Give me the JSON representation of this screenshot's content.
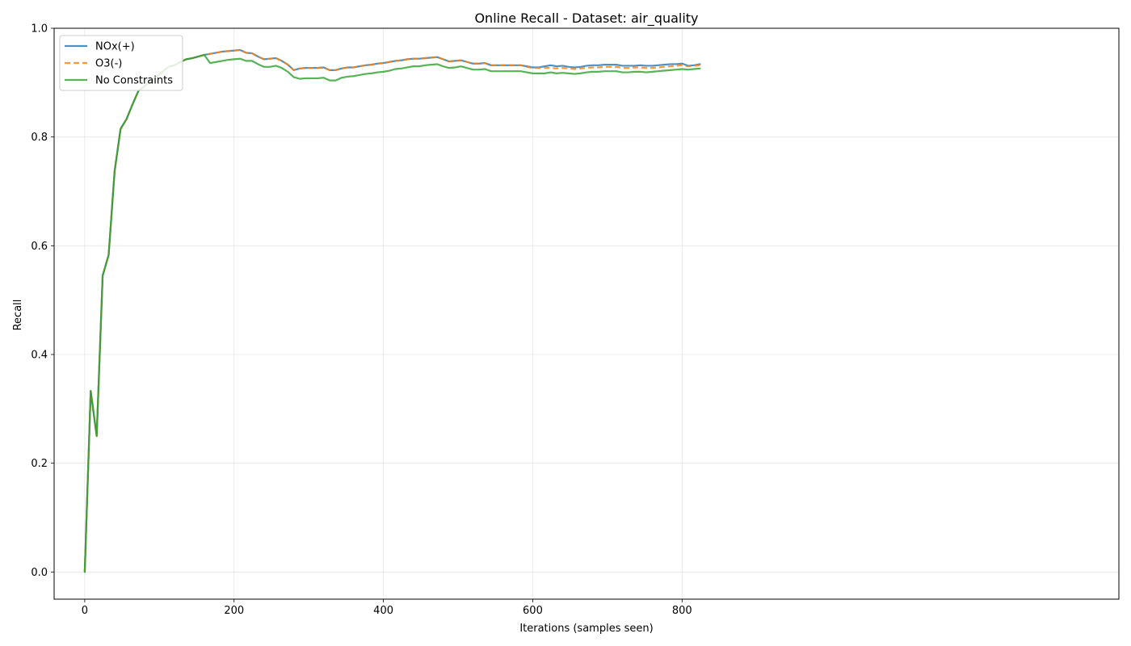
{
  "chart_data": {
    "type": "line",
    "title": "Online Recall - Dataset: air_quality",
    "xlabel": "Iterations (samples seen)",
    "ylabel": "Recall",
    "xlim": [
      -41,
      1385
    ],
    "ylim": [
      -0.05,
      1.0
    ],
    "xticks": [
      0,
      200,
      400,
      600,
      800
    ],
    "yticks": [
      0.0,
      0.2,
      0.4,
      0.6,
      0.8,
      1.0
    ],
    "xtick_labels": [
      "0",
      "200",
      "400",
      "600",
      "800"
    ],
    "ytick_labels": [
      "0.0",
      "0.2",
      "0.4",
      "0.6",
      "0.8",
      "1.0"
    ],
    "grid": true,
    "legend_position": "top-left",
    "x": [
      0,
      8,
      16,
      24,
      32,
      40,
      48,
      56,
      64,
      72,
      80,
      88,
      96,
      104,
      112,
      120,
      128,
      136,
      144,
      152,
      160,
      168,
      176,
      184,
      192,
      200,
      208,
      216,
      224,
      232,
      240,
      248,
      256,
      264,
      272,
      280,
      288,
      296,
      304,
      312,
      320,
      328,
      336,
      344,
      352,
      360,
      368,
      376,
      384,
      392,
      400,
      408,
      416,
      424,
      432,
      440,
      448,
      456,
      464,
      472,
      480,
      488,
      496,
      504,
      512,
      520,
      528,
      536,
      544,
      552,
      560,
      568,
      576,
      584,
      592,
      600,
      608,
      616,
      624,
      632,
      640,
      648,
      656,
      664,
      672,
      680,
      688,
      696,
      704,
      712,
      720,
      728,
      736,
      744,
      752,
      760,
      768,
      776,
      784,
      792,
      800,
      808,
      816,
      824
    ],
    "series": [
      {
        "name": "NOx(+)",
        "color": "#1f77b4",
        "dash": "solid",
        "values": [
          0.0,
          0.333,
          0.25,
          0.545,
          0.583,
          0.737,
          0.815,
          0.833,
          0.86,
          0.885,
          0.893,
          0.903,
          0.91,
          0.92,
          0.929,
          0.932,
          0.938,
          0.943,
          0.945,
          0.948,
          0.951,
          0.953,
          0.955,
          0.957,
          0.958,
          0.959,
          0.96,
          0.955,
          0.954,
          0.948,
          0.943,
          0.944,
          0.945,
          0.94,
          0.933,
          0.923,
          0.926,
          0.927,
          0.927,
          0.927,
          0.928,
          0.923,
          0.923,
          0.926,
          0.928,
          0.928,
          0.93,
          0.932,
          0.933,
          0.935,
          0.936,
          0.938,
          0.94,
          0.941,
          0.943,
          0.944,
          0.944,
          0.945,
          0.946,
          0.947,
          0.943,
          0.939,
          0.94,
          0.941,
          0.938,
          0.935,
          0.935,
          0.936,
          0.932,
          0.932,
          0.932,
          0.932,
          0.932,
          0.932,
          0.93,
          0.928,
          0.928,
          0.93,
          0.932,
          0.93,
          0.931,
          0.929,
          0.928,
          0.929,
          0.931,
          0.932,
          0.932,
          0.933,
          0.933,
          0.933,
          0.931,
          0.931,
          0.931,
          0.932,
          0.931,
          0.931,
          0.932,
          0.933,
          0.934,
          0.934,
          0.935,
          0.931,
          0.932,
          0.934
        ]
      },
      {
        "name": "O3(-)",
        "color": "#ff7f0e",
        "dash": "dashed",
        "values": [
          0.0,
          0.333,
          0.25,
          0.545,
          0.583,
          0.737,
          0.815,
          0.833,
          0.86,
          0.885,
          0.893,
          0.903,
          0.91,
          0.92,
          0.929,
          0.932,
          0.938,
          0.943,
          0.945,
          0.948,
          0.951,
          0.953,
          0.955,
          0.957,
          0.958,
          0.959,
          0.96,
          0.955,
          0.954,
          0.948,
          0.943,
          0.944,
          0.945,
          0.94,
          0.933,
          0.923,
          0.926,
          0.927,
          0.927,
          0.927,
          0.928,
          0.923,
          0.923,
          0.926,
          0.928,
          0.928,
          0.93,
          0.932,
          0.933,
          0.935,
          0.936,
          0.938,
          0.94,
          0.941,
          0.943,
          0.944,
          0.944,
          0.945,
          0.946,
          0.947,
          0.943,
          0.939,
          0.94,
          0.941,
          0.938,
          0.935,
          0.935,
          0.936,
          0.932,
          0.932,
          0.932,
          0.932,
          0.932,
          0.932,
          0.929,
          0.927,
          0.927,
          0.927,
          0.927,
          0.926,
          0.927,
          0.926,
          0.925,
          0.926,
          0.927,
          0.928,
          0.928,
          0.929,
          0.929,
          0.929,
          0.927,
          0.927,
          0.928,
          0.928,
          0.927,
          0.927,
          0.928,
          0.929,
          0.93,
          0.931,
          0.932,
          0.93,
          0.931,
          0.932
        ]
      },
      {
        "name": "No Constraints",
        "color": "#2ca02c",
        "dash": "solid",
        "values": [
          0.0,
          0.333,
          0.25,
          0.545,
          0.583,
          0.737,
          0.815,
          0.833,
          0.86,
          0.885,
          0.893,
          0.903,
          0.91,
          0.92,
          0.929,
          0.932,
          0.938,
          0.943,
          0.945,
          0.948,
          0.951,
          0.936,
          0.938,
          0.94,
          0.942,
          0.943,
          0.944,
          0.94,
          0.94,
          0.934,
          0.929,
          0.929,
          0.931,
          0.927,
          0.92,
          0.91,
          0.907,
          0.908,
          0.908,
          0.908,
          0.909,
          0.904,
          0.904,
          0.909,
          0.911,
          0.912,
          0.914,
          0.916,
          0.917,
          0.919,
          0.92,
          0.922,
          0.925,
          0.926,
          0.928,
          0.93,
          0.93,
          0.932,
          0.933,
          0.934,
          0.93,
          0.927,
          0.928,
          0.93,
          0.927,
          0.924,
          0.924,
          0.925,
          0.921,
          0.921,
          0.921,
          0.921,
          0.921,
          0.921,
          0.919,
          0.917,
          0.917,
          0.917,
          0.919,
          0.917,
          0.918,
          0.917,
          0.916,
          0.917,
          0.919,
          0.92,
          0.92,
          0.921,
          0.921,
          0.921,
          0.919,
          0.919,
          0.92,
          0.92,
          0.919,
          0.92,
          0.921,
          0.922,
          0.923,
          0.924,
          0.925,
          0.924,
          0.925,
          0.926
        ]
      }
    ]
  }
}
